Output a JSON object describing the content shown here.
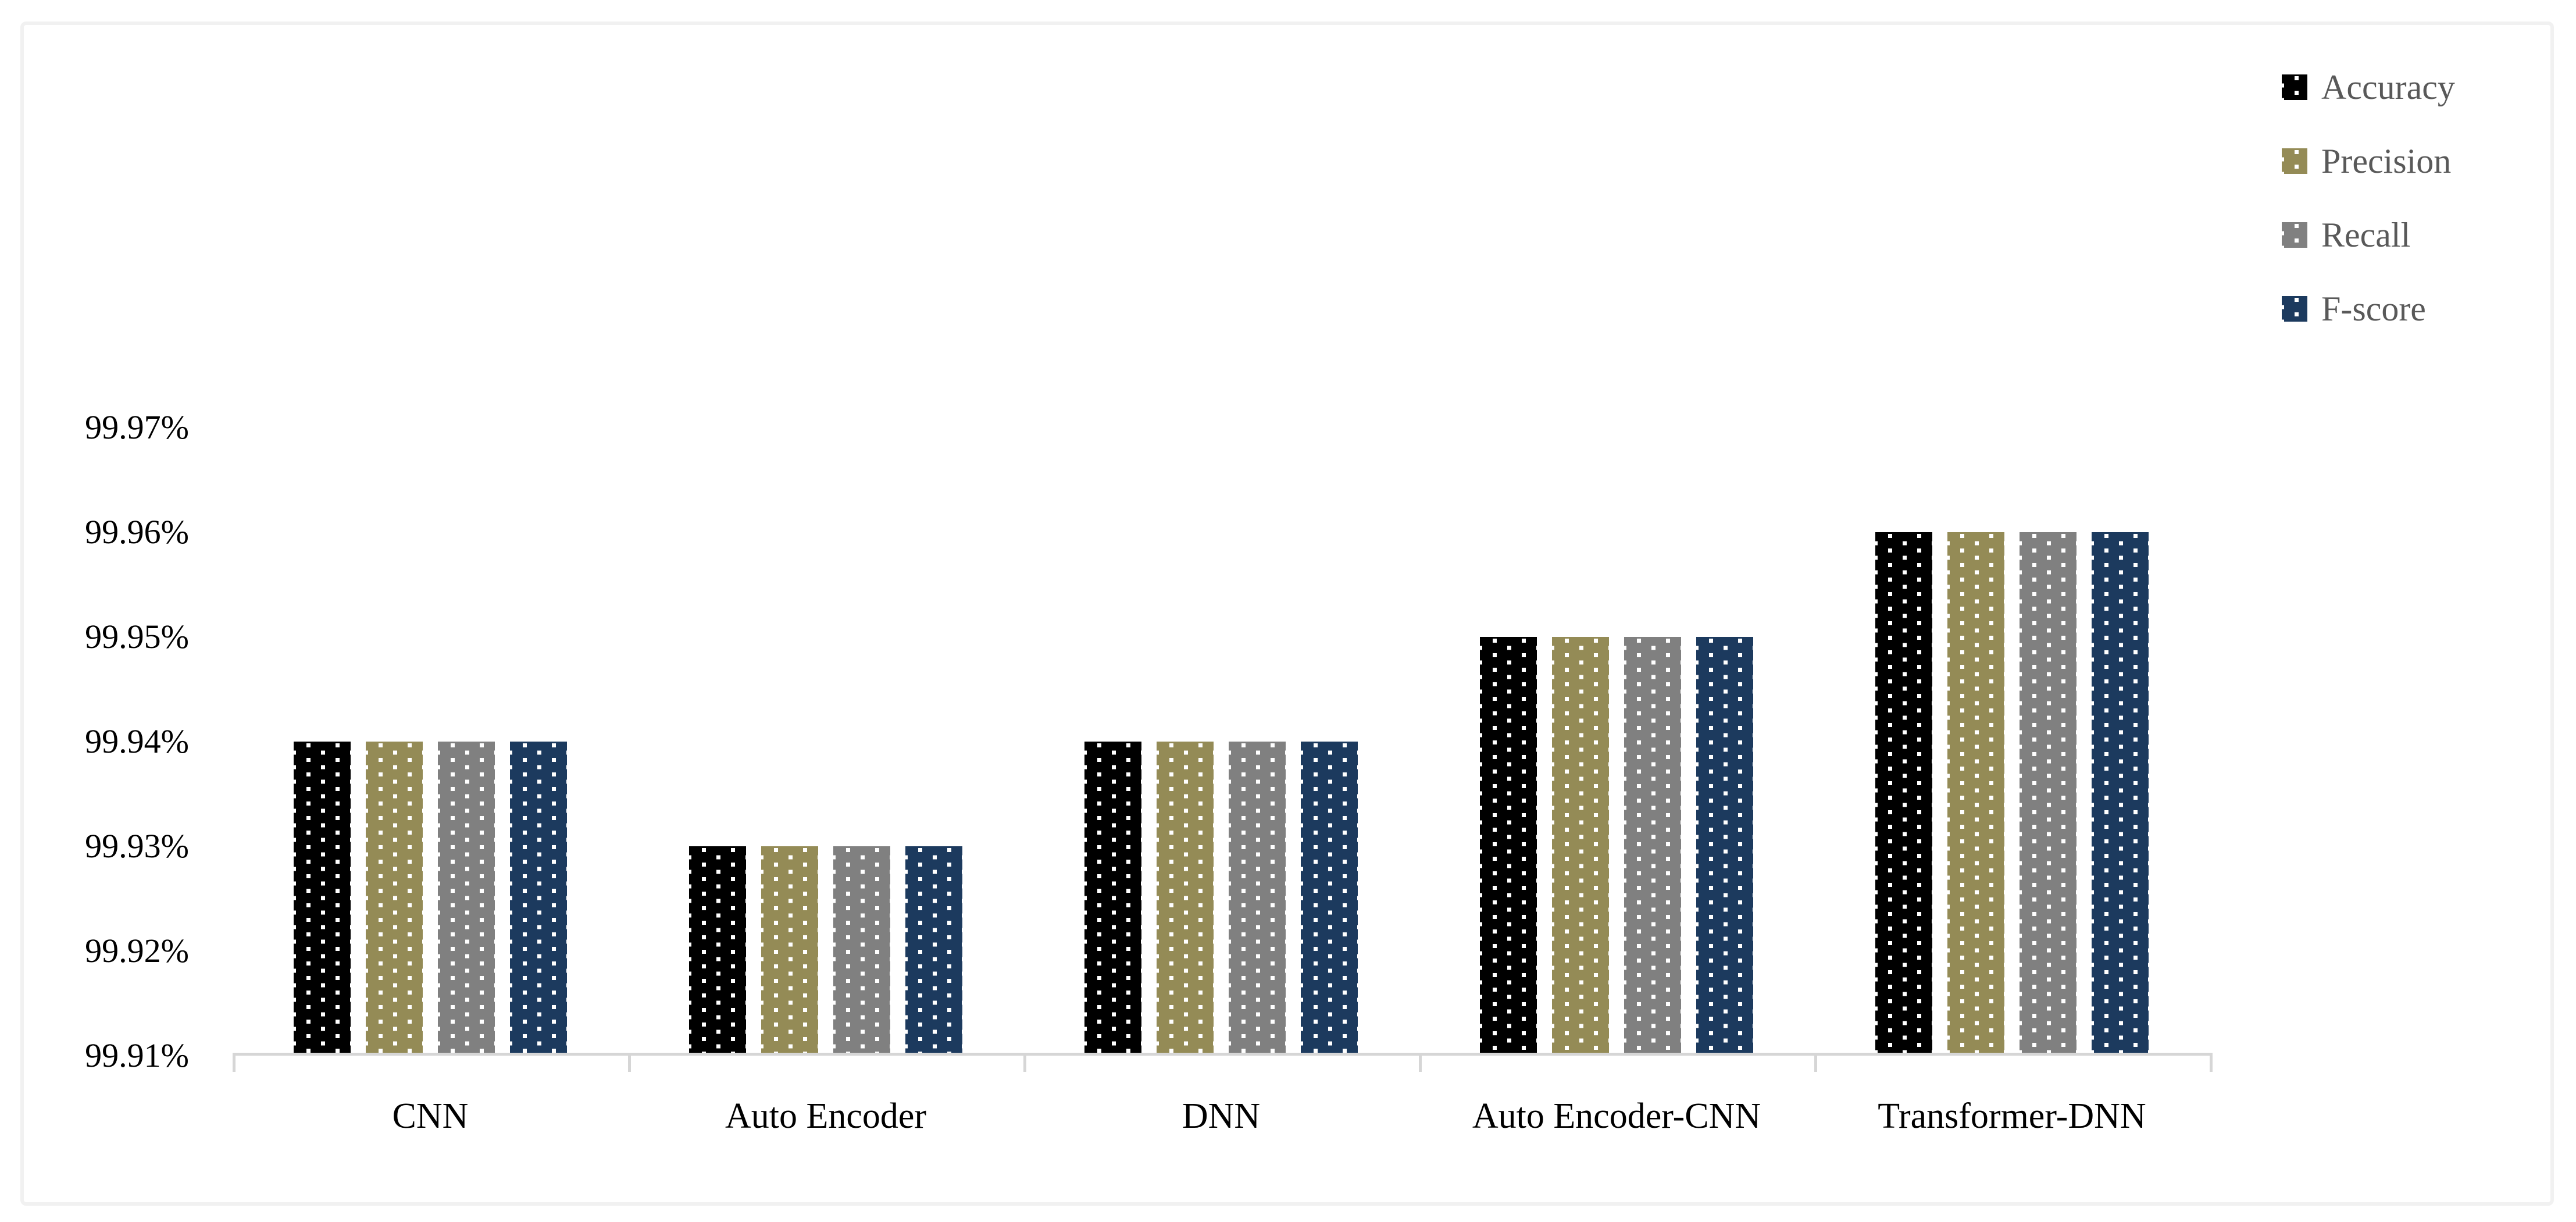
{
  "chart_data": {
    "type": "bar",
    "title": "",
    "categories": [
      "CNN",
      "Auto Encoder",
      "DNN",
      "Auto Encoder-CNN",
      "Transformer-DNN"
    ],
    "series": [
      {
        "name": "Accuracy",
        "color": "#000000",
        "values": [
          99.94,
          99.93,
          99.94,
          99.95,
          99.96
        ]
      },
      {
        "name": "Precision",
        "color": "#948B56",
        "values": [
          99.94,
          99.93,
          99.94,
          99.95,
          99.96
        ]
      },
      {
        "name": "Recall",
        "color": "#808080",
        "values": [
          99.94,
          99.93,
          99.94,
          99.95,
          99.96
        ]
      },
      {
        "name": "F-score",
        "color": "#1C3A5E",
        "values": [
          99.94,
          99.93,
          99.94,
          99.95,
          99.96
        ]
      }
    ],
    "y_axis": {
      "tick_labels": [
        "99.97%",
        "99.96%",
        "99.95%",
        "99.94%",
        "99.93%",
        "99.92%",
        "99.91%"
      ],
      "min": 99.91,
      "max": 99.97,
      "step": 0.01,
      "unit": "%"
    },
    "x_axis": {
      "tick_labels": [
        "CNN",
        "Auto Encoder",
        "DNN",
        "Auto Encoder-CNN",
        "Transformer-DNN"
      ]
    },
    "legend": {
      "position": "top-right",
      "entries": [
        "Accuracy",
        "Precision",
        "Recall",
        "F-score"
      ]
    },
    "grid": false,
    "bar_fill_pattern": "white-square-dots",
    "dot_color": "#FFFFFF",
    "axis_color": "#D6D6D6",
    "axis_text_color": "#000000",
    "legend_text_color": "#595959",
    "frame_color": "#F1F1F1",
    "background_color": "#FFFFFF"
  }
}
